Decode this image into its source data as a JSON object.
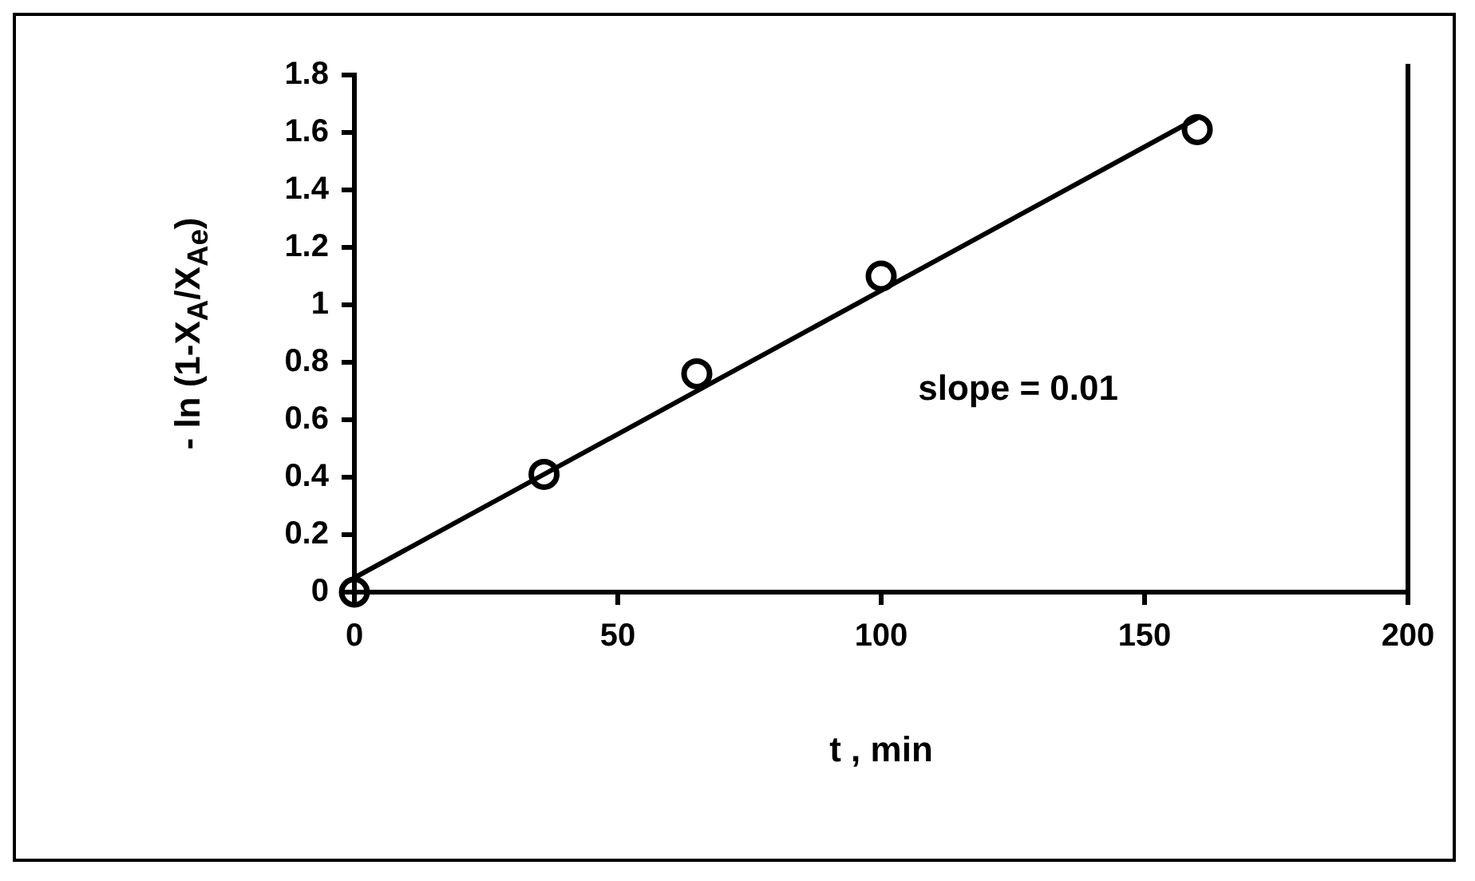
{
  "chart_data": {
    "type": "scatter",
    "xlabel": "t  , min",
    "ylabel": "- ln (1-X$_{A}$/X$_{Ae}$)",
    "xlim": [
      0,
      200
    ],
    "xticks": [
      0,
      50,
      100,
      150,
      200
    ],
    "ylim": [
      0,
      1.8
    ],
    "yticks": [
      0,
      0.2,
      0.4,
      0.6,
      0.8,
      1,
      1.2,
      1.4,
      1.6,
      1.8
    ],
    "grid": false,
    "legend": false,
    "marker": "circle",
    "series": [
      {
        "color": "#000000",
        "x": [
          0,
          36,
          65,
          100,
          160
        ],
        "values": [
          0,
          0.41,
          0.76,
          1.1,
          1.61
        ]
      },
      {
        "type": "line",
        "color": "#000000",
        "marker": "none",
        "line_style": "solid",
        "x": [
          0,
          160
        ],
        "values": [
          0.05,
          1.65
        ]
      }
    ],
    "annotations": [
      "slope = 0.01"
    ]
  }
}
